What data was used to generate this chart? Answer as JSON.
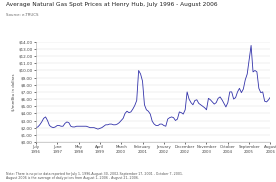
{
  "title": "Average Natural Gas Spot Prices at Henry Hub, July 1996 - August 2006",
  "source": "Source: e-TRUCS",
  "footnote": "Note: There is no price data reported for July 1, 1996-August 30, 2002-September 17, 2001 - October 7, 2001.\nAugust 2006 is the average of daily prices from August 1, 2006 - August 21, 2006.",
  "ylabel": "$/mmBtu in dollars",
  "line_color": "#3333aa",
  "bg_color": "#ffffff",
  "ylim_max": 14,
  "ytick_vals": [
    0,
    1,
    2,
    3,
    4,
    5,
    6,
    7,
    8,
    9,
    10,
    11,
    12,
    13,
    14
  ],
  "xtick_labels": [
    "July\n1996",
    "June\n1997",
    "May\n1998",
    "April\n1999",
    "March\n2000",
    "February\n2001",
    "January\n2002",
    "December\n2002",
    "November\n2003",
    "October\n2004",
    "September\n2005",
    "August\n2006"
  ],
  "prices": [
    2.0,
    2.1,
    2.4,
    2.8,
    3.3,
    3.5,
    3.0,
    2.3,
    2.1,
    2.0,
    2.1,
    2.3,
    2.3,
    2.2,
    2.2,
    2.6,
    2.8,
    2.7,
    2.2,
    2.1,
    2.1,
    2.2,
    2.2,
    2.2,
    2.2,
    2.2,
    2.2,
    2.1,
    2.0,
    2.0,
    2.0,
    1.9,
    1.8,
    1.9,
    2.0,
    2.2,
    2.4,
    2.4,
    2.5,
    2.5,
    2.4,
    2.4,
    2.5,
    2.7,
    3.0,
    3.3,
    4.0,
    4.3,
    4.1,
    4.2,
    4.6,
    5.1,
    5.8,
    10.0,
    9.5,
    8.5,
    5.2,
    4.5,
    4.3,
    3.9,
    2.9,
    2.5,
    2.3,
    2.3,
    2.5,
    2.5,
    2.3,
    2.2,
    3.2,
    3.4,
    3.5,
    3.4,
    3.0,
    3.2,
    4.2,
    4.1,
    3.9,
    4.5,
    7.0,
    6.0,
    5.5,
    5.2,
    5.8,
    5.9,
    5.4,
    5.2,
    5.0,
    4.8,
    4.5,
    6.1,
    5.9,
    5.6,
    5.3,
    5.5,
    6.1,
    6.3,
    5.9,
    5.4,
    4.9,
    5.5,
    7.0,
    7.0,
    6.0,
    6.2,
    7.0,
    7.5,
    6.9,
    7.4,
    8.7,
    9.5,
    11.5,
    13.5,
    9.8,
    10.0,
    9.8,
    7.5,
    6.9,
    7.0,
    5.7,
    5.6,
    5.9,
    6.3
  ]
}
